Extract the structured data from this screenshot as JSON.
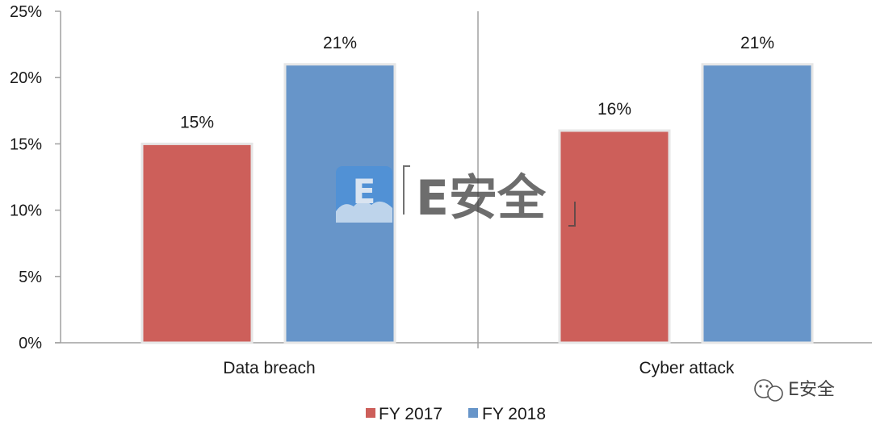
{
  "chart_data": {
    "type": "bar",
    "categories": [
      "Data breach",
      "Cyber attack"
    ],
    "series": [
      {
        "name": "FY 2017",
        "values": [
          15,
          16
        ],
        "color": "#cd5f5a"
      },
      {
        "name": "FY 2018",
        "values": [
          21,
          21
        ],
        "color": "#6795c9"
      }
    ],
    "data_labels": [
      [
        "15%",
        "16%"
      ],
      [
        "21%",
        "21%"
      ]
    ],
    "ylim": [
      0,
      25
    ],
    "yticks": [
      0,
      5,
      10,
      15,
      20,
      25
    ],
    "ytick_labels": [
      "0%",
      "5%",
      "10%",
      "15%",
      "20%",
      "25%"
    ],
    "title": "",
    "xlabel": "",
    "ylabel": "",
    "grid": false,
    "legend_position": "bottom"
  },
  "watermark": {
    "logo_letter": "E",
    "center_text": "E安全",
    "corner_text": "E安全",
    "logo_color": "#4a90d9"
  }
}
